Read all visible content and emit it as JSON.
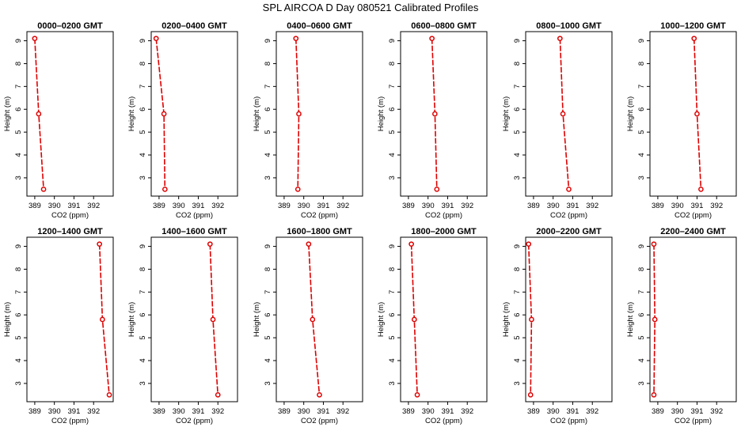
{
  "figure_title": "SPL AIRCOA D  Day 080521  Calibrated Profiles",
  "colors": {
    "line": "#dd0000",
    "point": "#dd0000",
    "axis": "#000000"
  },
  "chart_data": [
    {
      "type": "line",
      "title": "0000–0200 GMT",
      "xlabel": "CO2 (ppm)",
      "ylabel": "Height (m)",
      "xlim": [
        388.6,
        393.0
      ],
      "ylim": [
        2.2,
        9.4
      ],
      "xticks": [
        389,
        390,
        391,
        392
      ],
      "yticks": [
        3,
        4,
        5,
        6,
        7,
        8,
        9
      ],
      "x": [
        389.0,
        389.2,
        389.45
      ],
      "y": [
        9.1,
        5.8,
        2.5
      ]
    },
    {
      "type": "line",
      "title": "0200–0400 GMT",
      "xlabel": "CO2 (ppm)",
      "ylabel": "Height (m)",
      "xlim": [
        388.6,
        393.0
      ],
      "ylim": [
        2.2,
        9.4
      ],
      "xticks": [
        389,
        390,
        391,
        392
      ],
      "yticks": [
        3,
        4,
        5,
        6,
        7,
        8,
        9
      ],
      "x": [
        388.85,
        389.25,
        389.3
      ],
      "y": [
        9.1,
        5.8,
        2.5
      ]
    },
    {
      "type": "line",
      "title": "0400–0600 GMT",
      "xlabel": "CO2 (ppm)",
      "ylabel": "Height (m)",
      "xlim": [
        388.6,
        393.0
      ],
      "ylim": [
        2.2,
        9.4
      ],
      "xticks": [
        389,
        390,
        391,
        392
      ],
      "yticks": [
        3,
        4,
        5,
        6,
        7,
        8,
        9
      ],
      "x": [
        389.6,
        389.75,
        389.7
      ],
      "y": [
        9.1,
        5.8,
        2.5
      ]
    },
    {
      "type": "line",
      "title": "0600–0800 GMT",
      "xlabel": "CO2 (ppm)",
      "ylabel": "Height (m)",
      "xlim": [
        388.6,
        393.0
      ],
      "ylim": [
        2.2,
        9.4
      ],
      "xticks": [
        389,
        390,
        391,
        392
      ],
      "yticks": [
        3,
        4,
        5,
        6,
        7,
        8,
        9
      ],
      "x": [
        390.2,
        390.35,
        390.45
      ],
      "y": [
        9.1,
        5.8,
        2.5
      ]
    },
    {
      "type": "line",
      "title": "0800–1000 GMT",
      "xlabel": "CO2 (ppm)",
      "ylabel": "Height (m)",
      "xlim": [
        388.6,
        393.0
      ],
      "ylim": [
        2.2,
        9.4
      ],
      "xticks": [
        389,
        390,
        391,
        392
      ],
      "yticks": [
        3,
        4,
        5,
        6,
        7,
        8,
        9
      ],
      "x": [
        390.35,
        390.5,
        390.8
      ],
      "y": [
        9.1,
        5.8,
        2.5
      ]
    },
    {
      "type": "line",
      "title": "1000–1200 GMT",
      "xlabel": "CO2 (ppm)",
      "ylabel": "Height (m)",
      "xlim": [
        388.6,
        393.0
      ],
      "ylim": [
        2.2,
        9.4
      ],
      "xticks": [
        389,
        390,
        391,
        392
      ],
      "yticks": [
        3,
        4,
        5,
        6,
        7,
        8,
        9
      ],
      "x": [
        390.85,
        391.0,
        391.2
      ],
      "y": [
        9.1,
        5.8,
        2.5
      ]
    },
    {
      "type": "line",
      "title": "1200–1400 GMT",
      "xlabel": "CO2 (ppm)",
      "ylabel": "Height (m)",
      "xlim": [
        388.6,
        393.0
      ],
      "ylim": [
        2.2,
        9.4
      ],
      "xticks": [
        389,
        390,
        391,
        392
      ],
      "yticks": [
        3,
        4,
        5,
        6,
        7,
        8,
        9
      ],
      "x": [
        392.3,
        392.45,
        392.8
      ],
      "y": [
        9.1,
        5.8,
        2.5
      ]
    },
    {
      "type": "line",
      "title": "1400–1600 GMT",
      "xlabel": "CO2 (ppm)",
      "ylabel": "Height (m)",
      "xlim": [
        388.6,
        393.0
      ],
      "ylim": [
        2.2,
        9.4
      ],
      "xticks": [
        389,
        390,
        391,
        392
      ],
      "yticks": [
        3,
        4,
        5,
        6,
        7,
        8,
        9
      ],
      "x": [
        391.6,
        391.75,
        392.0
      ],
      "y": [
        9.1,
        5.8,
        2.5
      ]
    },
    {
      "type": "line",
      "title": "1600–1800 GMT",
      "xlabel": "CO2 (ppm)",
      "ylabel": "Height (m)",
      "xlim": [
        388.6,
        393.0
      ],
      "ylim": [
        2.2,
        9.4
      ],
      "xticks": [
        389,
        390,
        391,
        392
      ],
      "yticks": [
        3,
        4,
        5,
        6,
        7,
        8,
        9
      ],
      "x": [
        390.25,
        390.45,
        390.8
      ],
      "y": [
        9.1,
        5.8,
        2.5
      ]
    },
    {
      "type": "line",
      "title": "1800–2000 GMT",
      "xlabel": "CO2 (ppm)",
      "ylabel": "Height (m)",
      "xlim": [
        388.6,
        393.0
      ],
      "ylim": [
        2.2,
        9.4
      ],
      "xticks": [
        389,
        390,
        391,
        392
      ],
      "yticks": [
        3,
        4,
        5,
        6,
        7,
        8,
        9
      ],
      "x": [
        389.15,
        389.3,
        389.45
      ],
      "y": [
        9.1,
        5.8,
        2.5
      ]
    },
    {
      "type": "line",
      "title": "2000–2200 GMT",
      "xlabel": "CO2 (ppm)",
      "ylabel": "Height (m)",
      "xlim": [
        388.6,
        393.0
      ],
      "ylim": [
        2.2,
        9.4
      ],
      "xticks": [
        389,
        390,
        391,
        392
      ],
      "yticks": [
        3,
        4,
        5,
        6,
        7,
        8,
        9
      ],
      "x": [
        388.75,
        388.9,
        388.85
      ],
      "y": [
        9.1,
        5.8,
        2.5
      ]
    },
    {
      "type": "line",
      "title": "2200–2400 GMT",
      "xlabel": "CO2 (ppm)",
      "ylabel": "Height (m)",
      "xlim": [
        388.6,
        393.0
      ],
      "ylim": [
        2.2,
        9.4
      ],
      "xticks": [
        389,
        390,
        391,
        392
      ],
      "yticks": [
        3,
        4,
        5,
        6,
        7,
        8,
        9
      ],
      "x": [
        388.8,
        388.85,
        388.8
      ],
      "y": [
        9.1,
        5.8,
        2.5
      ]
    }
  ]
}
